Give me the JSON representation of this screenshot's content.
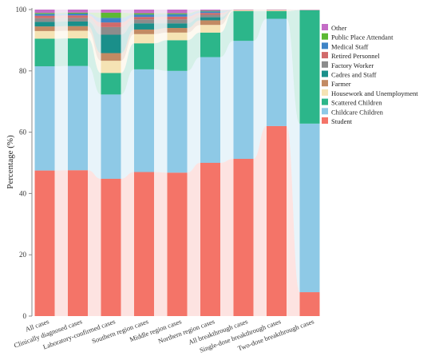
{
  "chart_data": {
    "type": "bar",
    "stacked": true,
    "ylabel": "Percentage (%)",
    "ylim": [
      0,
      100
    ],
    "yticks": [
      0,
      20,
      40,
      60,
      80,
      100
    ],
    "categories": [
      "All cases",
      "Clinically diagnosed cases",
      "Laboratory-confirmed cases",
      "Southern region cases",
      "Middle region cases",
      "Northern region cases",
      "All breakthrough cases",
      "Single-dose breakthrough cases",
      "Two-dose breakthrough cases"
    ],
    "legend_position": "top-right",
    "series": [
      {
        "name": "Student",
        "color": "#f47468",
        "values": [
          47.5,
          47.6,
          44.8,
          47.0,
          46.8,
          50.0,
          51.3,
          62.0,
          7.8
        ]
      },
      {
        "name": "Childcare Children",
        "color": "#8ec9e6",
        "values": [
          34.0,
          34.0,
          27.5,
          33.5,
          33.2,
          34.5,
          38.5,
          35.0,
          55.0
        ]
      },
      {
        "name": "Scattered Children",
        "color": "#2cb68a",
        "values": [
          9.0,
          9.0,
          7.0,
          8.5,
          10.0,
          8.0,
          9.7,
          2.5,
          37.0
        ]
      },
      {
        "name": "Housework and Unemployment",
        "color": "#f5e3b4",
        "values": [
          2.5,
          2.5,
          4.0,
          3.0,
          2.5,
          2.5,
          0.3,
          0.3,
          0.1
        ]
      },
      {
        "name": "Farmer",
        "color": "#c28a63",
        "values": [
          1.5,
          1.5,
          2.5,
          1.5,
          1.5,
          1.5,
          0.1,
          0.1,
          0.0
        ]
      },
      {
        "name": "Cadres and Staff",
        "color": "#1a8f8a",
        "values": [
          1.5,
          1.5,
          6.0,
          2.0,
          1.5,
          1.0,
          0.0,
          0.0,
          0.0
        ]
      },
      {
        "name": "Factory Worker",
        "color": "#8c8c8c",
        "values": [
          1.2,
          1.2,
          2.5,
          1.3,
          1.3,
          0.8,
          0.0,
          0.0,
          0.0
        ]
      },
      {
        "name": "Retired Personnel",
        "color": "#d16a6a",
        "values": [
          0.8,
          0.8,
          1.5,
          0.8,
          0.9,
          0.6,
          0.0,
          0.0,
          0.0
        ]
      },
      {
        "name": "Medical Staff",
        "color": "#3e84c6",
        "values": [
          0.6,
          0.6,
          1.5,
          0.8,
          0.8,
          0.5,
          0.0,
          0.0,
          0.0
        ]
      },
      {
        "name": "Public Place Attendant",
        "color": "#5cb833",
        "values": [
          0.3,
          0.3,
          1.7,
          0.4,
          0.3,
          0.2,
          0.0,
          0.0,
          0.0
        ]
      },
      {
        "name": "Other",
        "color": "#c46cc6",
        "values": [
          1.1,
          1.0,
          1.0,
          1.2,
          1.2,
          0.4,
          0.1,
          0.1,
          0.1
        ]
      }
    ]
  }
}
